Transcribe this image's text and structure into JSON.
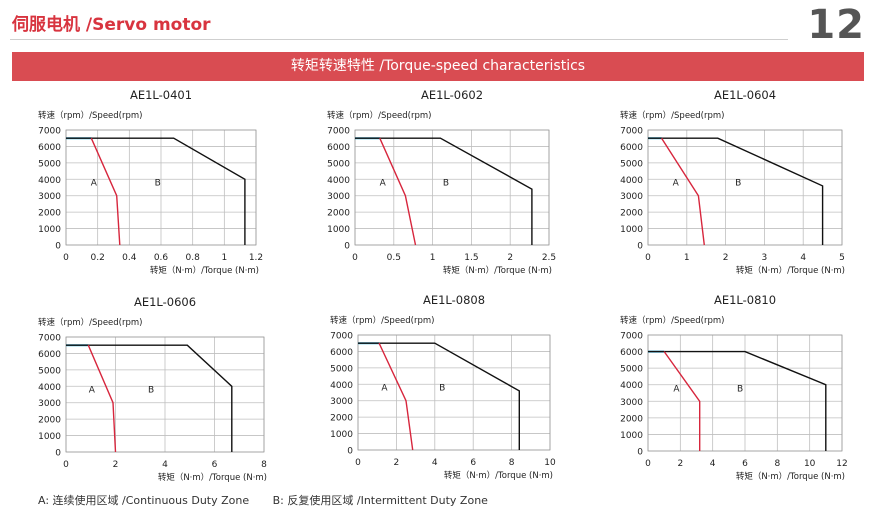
{
  "header": {
    "title": "伺服电机 /Servo motor",
    "page_number": "12",
    "banner": "转矩转速特性 /Torque-speed characteristics"
  },
  "legend": {
    "a": "A: 连续使用区域 /Continuous Duty Zone",
    "b": "B: 反复使用区域 /Intermittent Duty Zone"
  },
  "colors": {
    "accent": "#d94c52",
    "continuous": "#d7263d",
    "intermittent": "#111111",
    "rated": "#29a9d6",
    "grid": "#bfbfbf"
  },
  "chart_data": [
    {
      "type": "line",
      "title": "AE1L-0401",
      "ylabel": "转速（rpm）/Speed(rpm)",
      "xlabel": "转矩（N·m）/Torque (N·m)",
      "xlim": [
        0,
        1.2
      ],
      "ylim": [
        0,
        7000
      ],
      "x_ticks": [
        "0",
        "0.2",
        "0.4",
        "0.6",
        "0.8",
        "1",
        "1.2"
      ],
      "y_ticks": [
        "0",
        "1000",
        "2000",
        "3000",
        "4000",
        "5000",
        "6000",
        "7000"
      ],
      "zone_labels": {
        "a": "A",
        "b": "B"
      },
      "rated_speed": {
        "x": [
          0,
          0.16
        ],
        "y": 6500
      },
      "continuous": {
        "x": [
          0.16,
          0.32,
          0.34
        ],
        "y": [
          6500,
          3000,
          0
        ]
      },
      "intermittent": {
        "x": [
          0,
          0.68,
          1.13,
          1.13
        ],
        "y": [
          6500,
          6500,
          4000,
          0
        ]
      }
    },
    {
      "type": "line",
      "title": "AE1L-0602",
      "ylabel": "转速（rpm）/Speed(rpm)",
      "xlabel": "转矩（N·m）/Torque (N·m)",
      "xlim": [
        0,
        2.5
      ],
      "ylim": [
        0,
        7000
      ],
      "x_ticks": [
        "0",
        "0.5",
        "1",
        "1.5",
        "2",
        "2.5"
      ],
      "y_ticks": [
        "0",
        "1000",
        "2000",
        "3000",
        "4000",
        "5000",
        "6000",
        "7000"
      ],
      "zone_labels": {
        "a": "A",
        "b": "B"
      },
      "rated_speed": {
        "x": [
          0,
          0.32
        ],
        "y": 6500
      },
      "continuous": {
        "x": [
          0.32,
          0.65,
          0.78
        ],
        "y": [
          6500,
          3000,
          0
        ]
      },
      "intermittent": {
        "x": [
          0,
          1.1,
          2.28,
          2.28
        ],
        "y": [
          6500,
          6500,
          3400,
          0
        ]
      }
    },
    {
      "type": "line",
      "title": "AE1L-0604",
      "ylabel": "转速（rpm）/Speed(rpm)",
      "xlabel": "转矩（N·m）/Torque (N·m)",
      "xlim": [
        0,
        5
      ],
      "ylim": [
        0,
        7000
      ],
      "x_ticks": [
        "0",
        "1",
        "2",
        "3",
        "4",
        "5"
      ],
      "y_ticks": [
        "0",
        "1000",
        "2000",
        "3000",
        "4000",
        "5000",
        "6000",
        "7000"
      ],
      "zone_labels": {
        "a": "A",
        "b": "B"
      },
      "rated_speed": {
        "x": [
          0,
          0.35
        ],
        "y": 6500
      },
      "continuous": {
        "x": [
          0.35,
          1.3,
          1.45
        ],
        "y": [
          6500,
          3000,
          0
        ]
      },
      "intermittent": {
        "x": [
          0,
          1.8,
          4.5,
          4.5
        ],
        "y": [
          6500,
          6500,
          3600,
          0
        ]
      }
    },
    {
      "type": "line",
      "title": "AE1L-0606",
      "ylabel": "转速（rpm）/Speed(rpm)",
      "xlabel": "转矩（N·m）/Torque (N·m)",
      "xlim": [
        0,
        8
      ],
      "ylim": [
        0,
        7000
      ],
      "x_ticks": [
        "0",
        "2",
        "4",
        "6",
        "8"
      ],
      "y_ticks": [
        "0",
        "1000",
        "2000",
        "3000",
        "4000",
        "5000",
        "6000",
        "7000"
      ],
      "zone_labels": {
        "a": "A",
        "b": "B"
      },
      "rated_speed": {
        "x": [
          0,
          0.9
        ],
        "y": 6500
      },
      "continuous": {
        "x": [
          0.9,
          1.9,
          2.0
        ],
        "y": [
          6500,
          3000,
          0
        ]
      },
      "intermittent": {
        "x": [
          0,
          4.9,
          6.7,
          6.7
        ],
        "y": [
          6500,
          6500,
          4000,
          0
        ]
      }
    },
    {
      "type": "line",
      "title": "AE1L-0808",
      "ylabel": "转速（rpm）/Speed(rpm)",
      "xlabel": "转矩（N·m）/Torque (N·m)",
      "xlim": [
        0,
        10
      ],
      "ylim": [
        0,
        7000
      ],
      "x_ticks": [
        "0",
        "2",
        "4",
        "6",
        "8",
        "10"
      ],
      "y_ticks": [
        "0",
        "1000",
        "2000",
        "3000",
        "4000",
        "5000",
        "6000",
        "7000"
      ],
      "zone_labels": {
        "a": "A",
        "b": "B"
      },
      "rated_speed": {
        "x": [
          0,
          1.1
        ],
        "y": 6500
      },
      "continuous": {
        "x": [
          1.1,
          2.5,
          2.85
        ],
        "y": [
          6500,
          3000,
          0
        ]
      },
      "intermittent": {
        "x": [
          0,
          4.0,
          8.4,
          8.4
        ],
        "y": [
          6500,
          6500,
          3600,
          0
        ]
      }
    },
    {
      "type": "line",
      "title": "AE1L-0810",
      "ylabel": "转速（rpm）/Speed(rpm)",
      "xlabel": "转矩（N·m）/Torque (N·m)",
      "xlim": [
        0,
        12
      ],
      "ylim": [
        0,
        7000
      ],
      "x_ticks": [
        "0",
        "2",
        "4",
        "6",
        "8",
        "10",
        "12"
      ],
      "y_ticks": [
        "0",
        "1000",
        "2000",
        "3000",
        "4000",
        "5000",
        "6000",
        "7000"
      ],
      "zone_labels": {
        "a": "A",
        "b": "B"
      },
      "rated_speed": {
        "x": [
          0,
          1.0
        ],
        "y": 6000
      },
      "continuous": {
        "x": [
          1.0,
          3.2,
          3.2
        ],
        "y": [
          6000,
          3000,
          0
        ]
      },
      "intermittent": {
        "x": [
          0,
          6.0,
          11.0,
          11.0
        ],
        "y": [
          6000,
          6000,
          4000,
          0
        ]
      }
    }
  ]
}
